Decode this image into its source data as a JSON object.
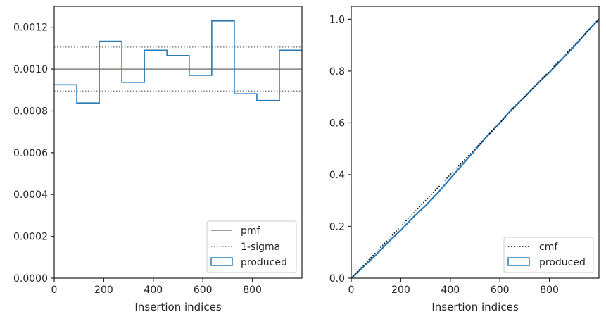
{
  "chart_data": [
    {
      "type": "step",
      "xlabel": "Insertion indices",
      "ylabel": "",
      "xlim": [
        0,
        1000
      ],
      "ylim": [
        0,
        0.0013
      ],
      "xticks": [
        0,
        200,
        400,
        600,
        800
      ],
      "xtick_labels": [
        "0",
        "200",
        "400",
        "600",
        "800"
      ],
      "yticks": [
        0,
        0.0002,
        0.0004,
        0.0006,
        0.0008,
        0.001,
        0.0012
      ],
      "ytick_labels": [
        "0.0000",
        "0.0002",
        "0.0004",
        "0.0006",
        "0.0008",
        "0.0010",
        "0.0012"
      ],
      "grid": false,
      "legend_position": "lower-right",
      "pmf": {
        "name": "pmf",
        "value": 0.001,
        "color": "#808080"
      },
      "sigma": {
        "name": "1-sigma",
        "lower": 0.000895,
        "upper": 0.001105,
        "color": "#808080"
      },
      "series": [
        {
          "name": "produced",
          "color": "#2b7bb9",
          "bin_edges": [
            0,
            91,
            182,
            273,
            364,
            455,
            545,
            636,
            727,
            818,
            909,
            1000
          ],
          "values": [
            0.000925,
            0.000838,
            0.001133,
            0.000937,
            0.00109,
            0.001065,
            0.00097,
            0.00123,
            0.000882,
            0.00085,
            0.00109
          ]
        }
      ],
      "legend": [
        "pmf",
        "1-sigma",
        "produced"
      ]
    },
    {
      "type": "line",
      "xlabel": "Insertion indices",
      "ylabel": "",
      "xlim": [
        0,
        1000
      ],
      "ylim": [
        0,
        1.05
      ],
      "xticks": [
        0,
        200,
        400,
        600,
        800
      ],
      "xtick_labels": [
        "0",
        "200",
        "400",
        "600",
        "800"
      ],
      "yticks": [
        0,
        0.2,
        0.4,
        0.6,
        0.8,
        1.0
      ],
      "ytick_labels": [
        "0.0",
        "0.2",
        "0.4",
        "0.6",
        "0.8",
        "1.0"
      ],
      "grid": false,
      "legend_position": "lower-right",
      "series": [
        {
          "name": "cmf",
          "style": "dotted",
          "color": "#000000",
          "x": [
            0,
            1000
          ],
          "y": [
            0,
            1.0
          ]
        },
        {
          "name": "produced",
          "style": "solid",
          "color": "#2b7bb9",
          "x": [
            0,
            50,
            100,
            150,
            200,
            250,
            300,
            350,
            400,
            450,
            500,
            550,
            600,
            650,
            700,
            750,
            800,
            850,
            900,
            950,
            1000
          ],
          "y": [
            0,
            0.045,
            0.09,
            0.14,
            0.185,
            0.235,
            0.28,
            0.33,
            0.385,
            0.44,
            0.495,
            0.55,
            0.6,
            0.655,
            0.7,
            0.75,
            0.795,
            0.845,
            0.895,
            0.95,
            1.0
          ]
        }
      ],
      "legend": [
        "cmf",
        "produced"
      ]
    }
  ]
}
